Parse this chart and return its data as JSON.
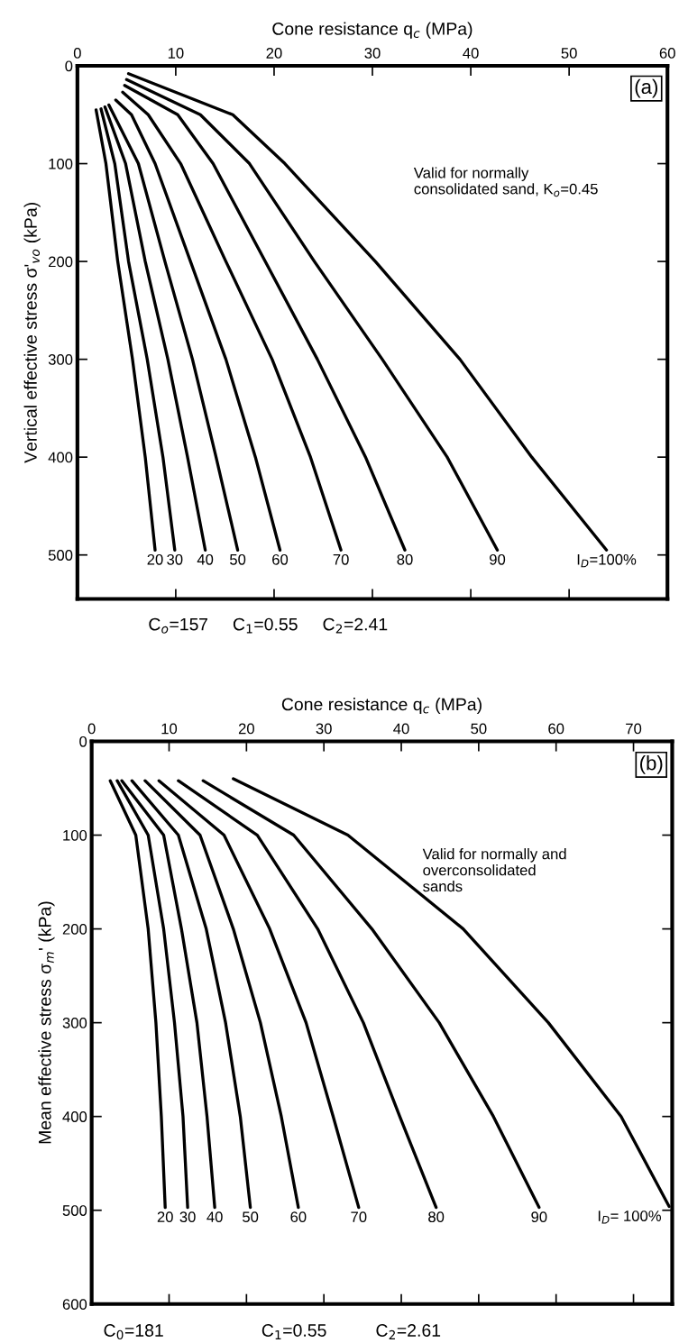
{
  "chart_data": [
    {
      "type": "line",
      "title": "(a)",
      "xlabel": "Cone resistance q$_{c}$ (MPa)",
      "ylabel": "Vertical effective stress σ'$_{vo}$ (kPa)",
      "xlim": [
        0,
        60
      ],
      "xticks": [
        0,
        10,
        20,
        30,
        40,
        50,
        60
      ],
      "ylim": [
        545,
        0
      ],
      "yticks": [
        0,
        100,
        200,
        300,
        400,
        500
      ],
      "grid": false,
      "tick_labels": "x2",
      "annotations": [
        "Valid for normally\nconsolidated sand, K$_{o}$=0.45",
        "C$_{o}$=157     C$_{1}$=0.55     C$_{2}$=2.41"
      ],
      "series": [
        {
          "name": "20",
          "color": "#000000",
          "x": [
            1.9,
            2.9,
            4.1,
            5.6,
            6.9,
            7.9
          ],
          "values": [
            45,
            100,
            200,
            300,
            400,
            495
          ]
        },
        {
          "name": "30",
          "color": "#000000",
          "x": [
            2.4,
            3.8,
            5.2,
            7.1,
            8.7,
            9.9
          ],
          "values": [
            44,
            100,
            200,
            300,
            400,
            495
          ]
        },
        {
          "name": "40",
          "color": "#000000",
          "x": [
            2.8,
            4.9,
            6.9,
            9.2,
            11.2,
            13.0
          ],
          "values": [
            42,
            100,
            200,
            300,
            400,
            495
          ]
        },
        {
          "name": "50",
          "color": "#000000",
          "x": [
            3.2,
            6.2,
            8.9,
            11.7,
            14.1,
            16.3
          ],
          "values": [
            40,
            100,
            200,
            300,
            400,
            495
          ]
        },
        {
          "name": "60",
          "color": "#000000",
          "x": [
            3.9,
            5.5,
            7.9,
            11.5,
            15.1,
            18.1,
            20.6
          ],
          "values": [
            35,
            50,
            100,
            200,
            300,
            400,
            495
          ]
        },
        {
          "name": "70",
          "color": "#000000",
          "x": [
            4.6,
            7.2,
            10.5,
            15.1,
            19.8,
            23.7,
            26.8
          ],
          "values": [
            27,
            50,
            100,
            200,
            300,
            400,
            495
          ]
        },
        {
          "name": "80",
          "color": "#000000",
          "x": [
            4.8,
            10.2,
            13.8,
            19.1,
            24.4,
            29.3,
            33.3
          ],
          "values": [
            20,
            50,
            100,
            200,
            300,
            400,
            495
          ]
        },
        {
          "name": "90",
          "color": "#000000",
          "x": [
            5.0,
            12.5,
            17.5,
            24.1,
            31.0,
            37.6,
            42.7
          ],
          "values": [
            14,
            50,
            100,
            200,
            300,
            400,
            495
          ]
        },
        {
          "name": "I$_{D}$=100%",
          "color": "#000000",
          "x": [
            5.2,
            15.8,
            21.1,
            30.3,
            38.9,
            46.2,
            53.8
          ],
          "values": [
            8,
            50,
            100,
            200,
            300,
            400,
            495
          ]
        }
      ]
    },
    {
      "type": "line",
      "title": "(b)",
      "xlabel": "Cone resistance q$_{c}$ (MPa)",
      "ylabel": "Mean effective stress σ$_{m}$' (kPa)",
      "xlim": [
        0,
        75
      ],
      "xticks": [
        0,
        10,
        20,
        30,
        40,
        50,
        60,
        70
      ],
      "ylim": [
        600,
        0
      ],
      "yticks": [
        0,
        100,
        200,
        300,
        400,
        500,
        600
      ],
      "grid": false,
      "tick_labels": "x2",
      "annotations": [
        "Valid for normally and\noverconsolidated\nsands",
        "C$_{0}$=181                    C$_{1}$=0.55          C$_{2}$=2.61"
      ],
      "series": [
        {
          "name": "20",
          "color": "#000000",
          "x": [
            2.4,
            5.7,
            7.3,
            8.3,
            9.0,
            9.5
          ],
          "values": [
            42,
            100,
            200,
            300,
            400,
            497
          ]
        },
        {
          "name": "30",
          "color": "#000000",
          "x": [
            3.3,
            7.3,
            9.3,
            10.7,
            11.8,
            12.4
          ],
          "values": [
            42,
            100,
            200,
            300,
            400,
            497
          ]
        },
        {
          "name": "40",
          "color": "#000000",
          "x": [
            3.9,
            9.3,
            11.6,
            13.6,
            14.9,
            15.9
          ],
          "values": [
            42,
            100,
            200,
            300,
            400,
            497
          ]
        },
        {
          "name": "50",
          "color": "#000000",
          "x": [
            5.2,
            11.2,
            14.8,
            17.3,
            19.2,
            20.5
          ],
          "values": [
            42,
            100,
            200,
            300,
            400,
            497
          ]
        },
        {
          "name": "60",
          "color": "#000000",
          "x": [
            6.9,
            14.0,
            18.3,
            21.8,
            24.5,
            26.7
          ],
          "values": [
            42,
            100,
            200,
            300,
            400,
            497
          ]
        },
        {
          "name": "70",
          "color": "#000000",
          "x": [
            8.7,
            17.1,
            23.0,
            27.7,
            31.2,
            34.5
          ],
          "values": [
            42,
            100,
            200,
            300,
            400,
            497
          ]
        },
        {
          "name": "80",
          "color": "#000000",
          "x": [
            11.2,
            21.4,
            29.2,
            35.1,
            39.8,
            44.5
          ],
          "values": [
            42,
            100,
            200,
            300,
            400,
            497
          ]
        },
        {
          "name": "90",
          "color": "#000000",
          "x": [
            14.4,
            26.1,
            36.2,
            44.9,
            51.9,
            57.8
          ],
          "values": [
            42,
            100,
            200,
            300,
            400,
            497
          ]
        },
        {
          "name": "I$_{D}$= 100%",
          "color": "#000000",
          "x": [
            18.3,
            33.1,
            48.0,
            59.0,
            68.4,
            74.6
          ],
          "values": [
            40,
            100,
            200,
            300,
            400,
            496
          ]
        }
      ]
    }
  ]
}
